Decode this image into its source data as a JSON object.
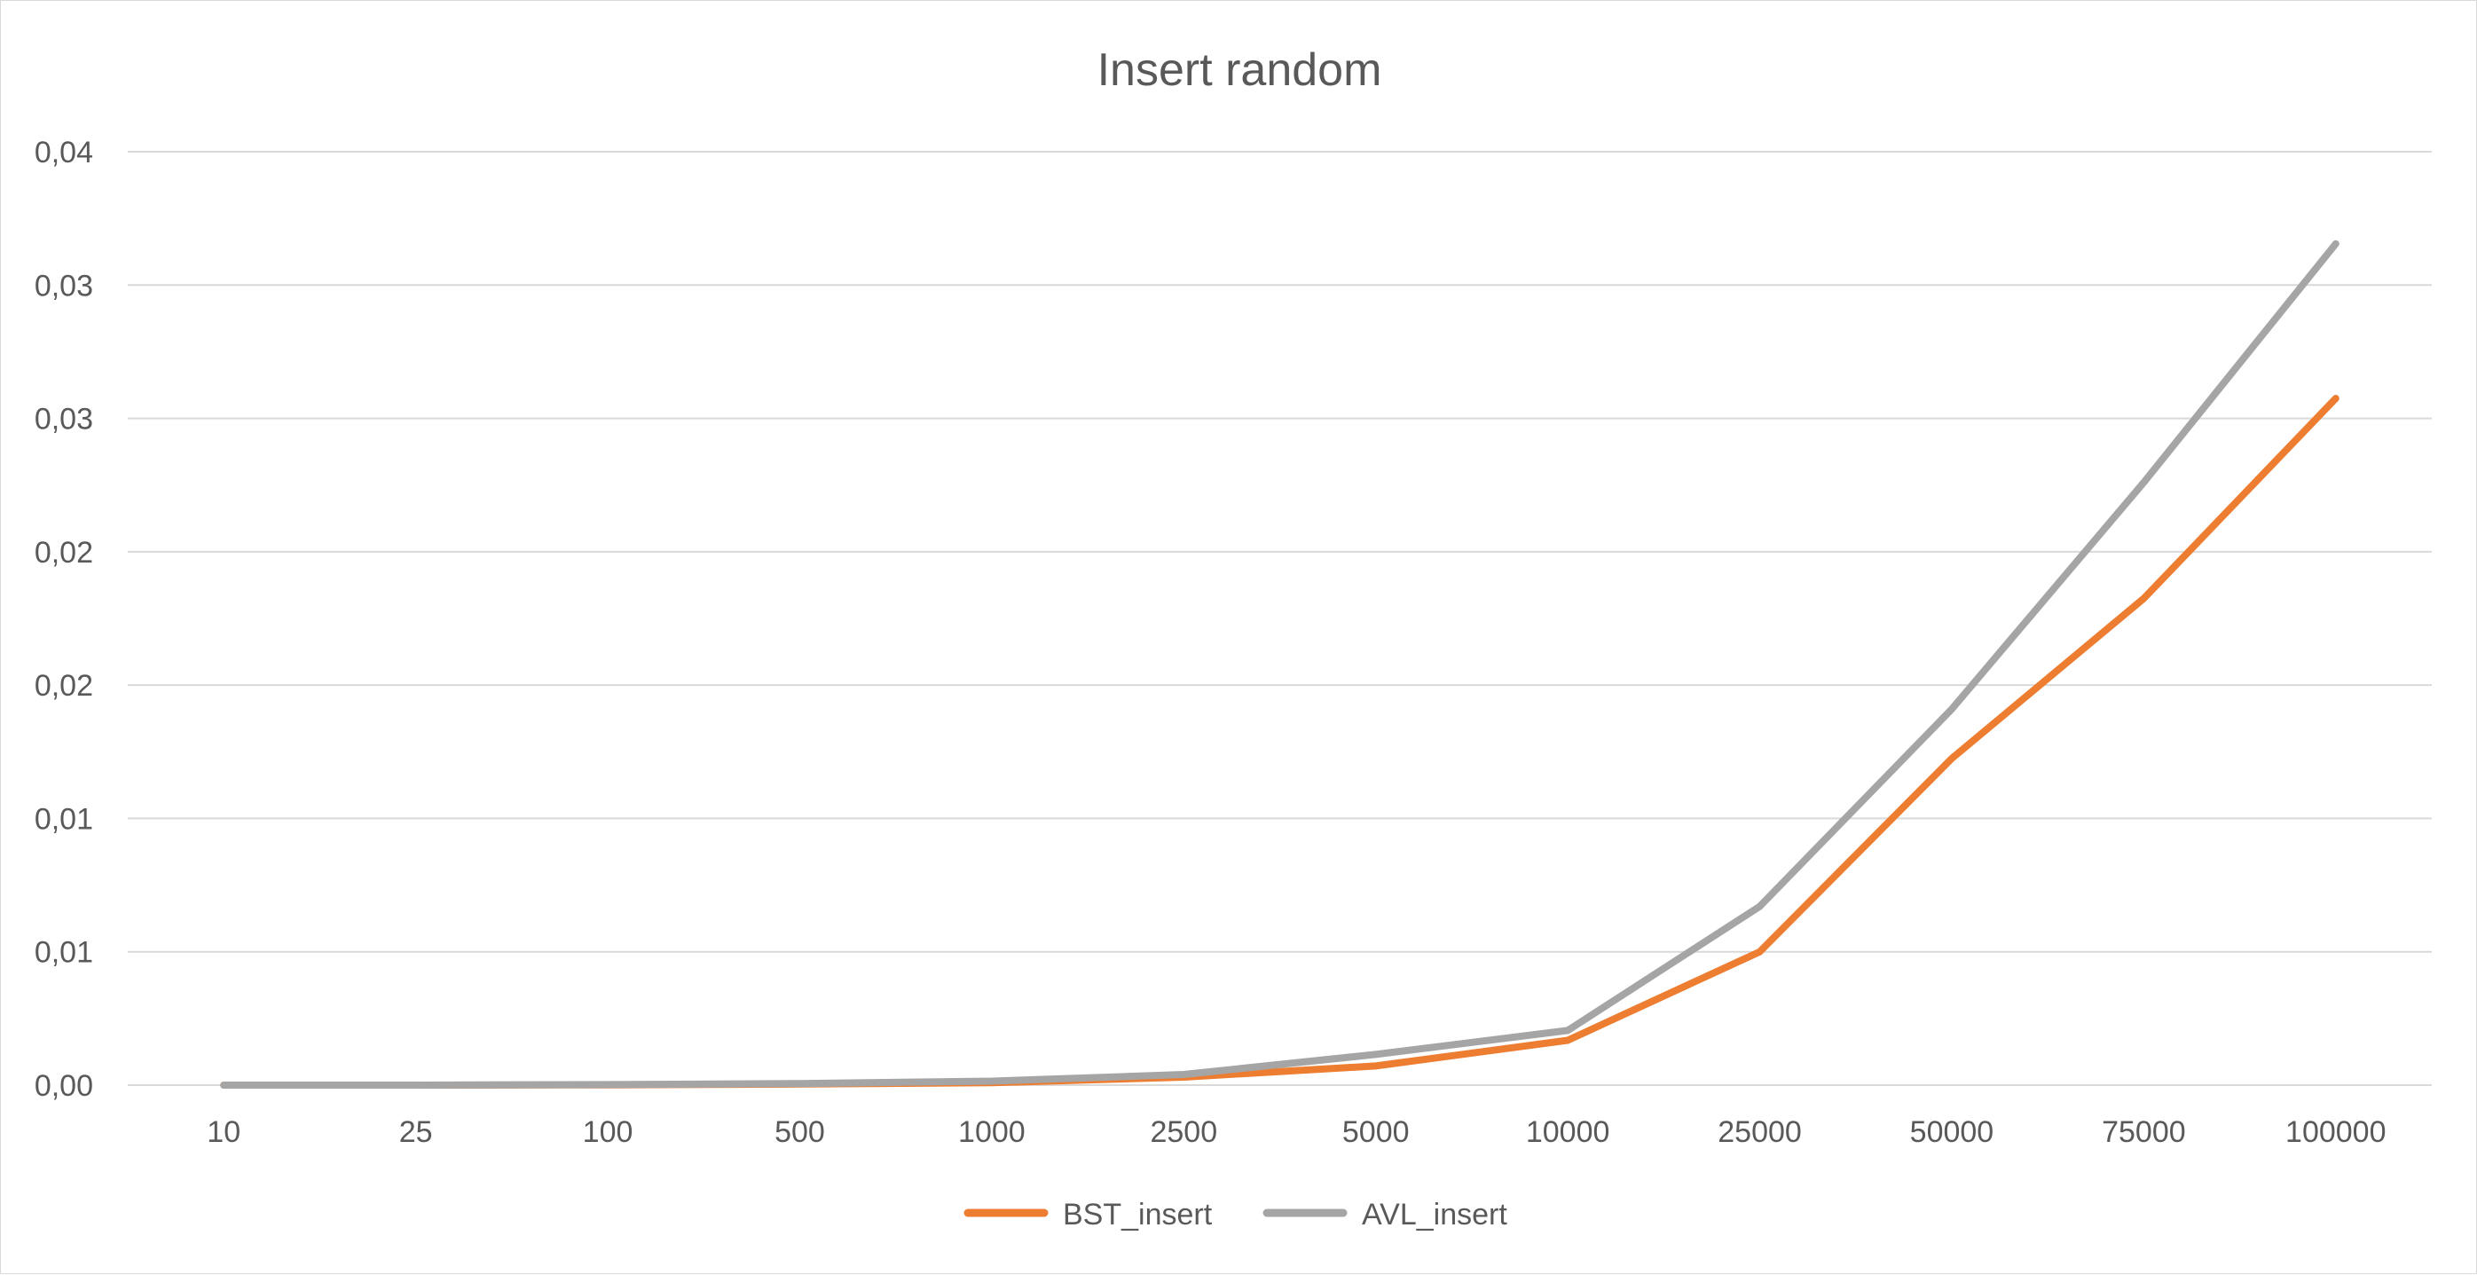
{
  "chart_data": {
    "type": "line",
    "title": "Insert random",
    "xlabel": "",
    "ylabel": "",
    "categories": [
      "10",
      "25",
      "100",
      "500",
      "1000",
      "2500",
      "5000",
      "10000",
      "25000",
      "50000",
      "75000",
      "100000"
    ],
    "y_tick_labels": [
      "0,00",
      "0,01",
      "0,01",
      "0,02",
      "0,02",
      "0,03",
      "0,03",
      "0,04"
    ],
    "ylim": [
      0,
      0.035
    ],
    "grid": true,
    "legend_position": "bottom",
    "series": [
      {
        "name": "BST_insert",
        "color": "#ED7D31",
        "values": [
          0.0,
          0.0,
          1e-05,
          4e-05,
          9e-05,
          0.0003,
          0.00072,
          0.00168,
          0.005,
          0.01225,
          0.01825,
          0.02575
        ]
      },
      {
        "name": "AVL_insert",
        "color": "#A5A5A5",
        "values": [
          0.0,
          0.0,
          2e-05,
          6e-05,
          0.00015,
          0.0004,
          0.00115,
          0.00205,
          0.0067,
          0.0141,
          0.0226,
          0.03155
        ]
      }
    ]
  }
}
